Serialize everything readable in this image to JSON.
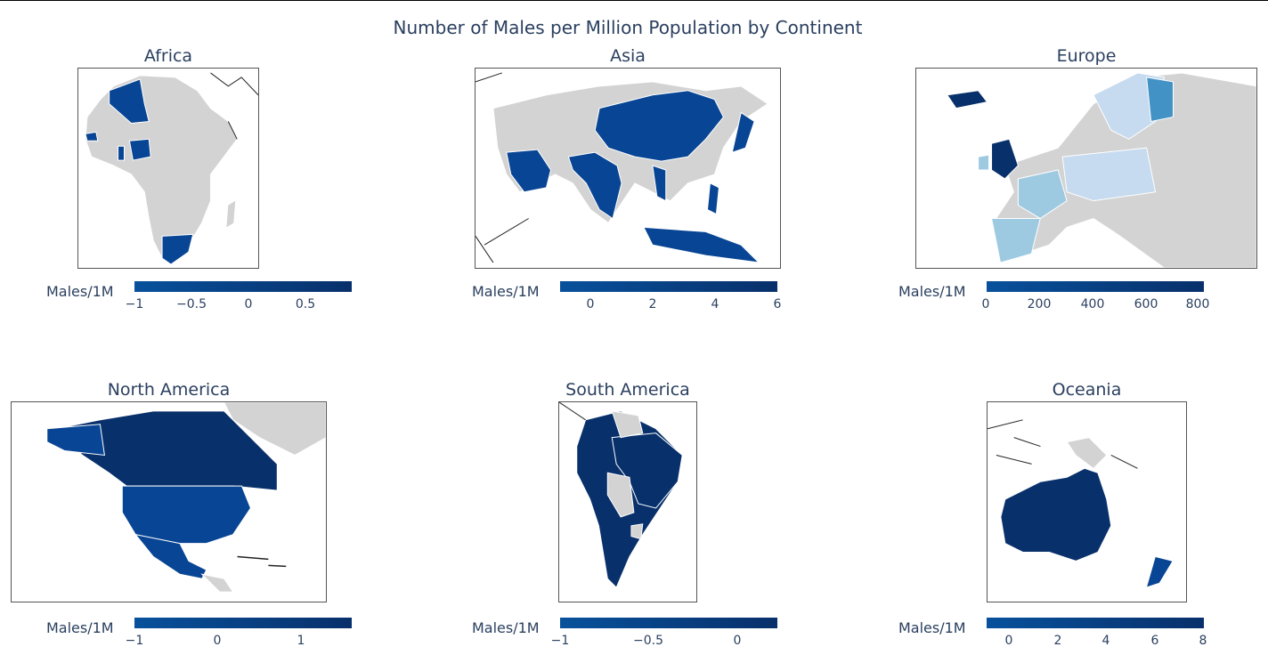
{
  "title": "Number of Males per Million Population by Continent",
  "colors": {
    "land": "#d3d3d3",
    "ocean": "#ffffff",
    "dark": "#08306b",
    "mid": "#084594",
    "mid2": "#08519c",
    "light": "#4292c6",
    "pale": "#9ecae1",
    "paler": "#c6dbef",
    "coast": "#222222"
  },
  "colorbar_title": "Males/1M",
  "maps": [
    {
      "name": "Africa",
      "ticks": [
        "−1",
        "−0.5",
        "0",
        "0.5"
      ]
    },
    {
      "name": "Asia",
      "ticks": [
        "0",
        "2",
        "4",
        "6"
      ]
    },
    {
      "name": "Europe",
      "ticks": [
        "0",
        "200",
        "400",
        "600",
        "800"
      ]
    },
    {
      "name": "North America",
      "ticks": [
        "−1",
        "0",
        "1"
      ]
    },
    {
      "name": "South America",
      "ticks": [
        "−1",
        "−0.5",
        "0"
      ]
    },
    {
      "name": "Oceania",
      "ticks": [
        "0",
        "2",
        "4",
        "6",
        "8"
      ]
    }
  ]
}
